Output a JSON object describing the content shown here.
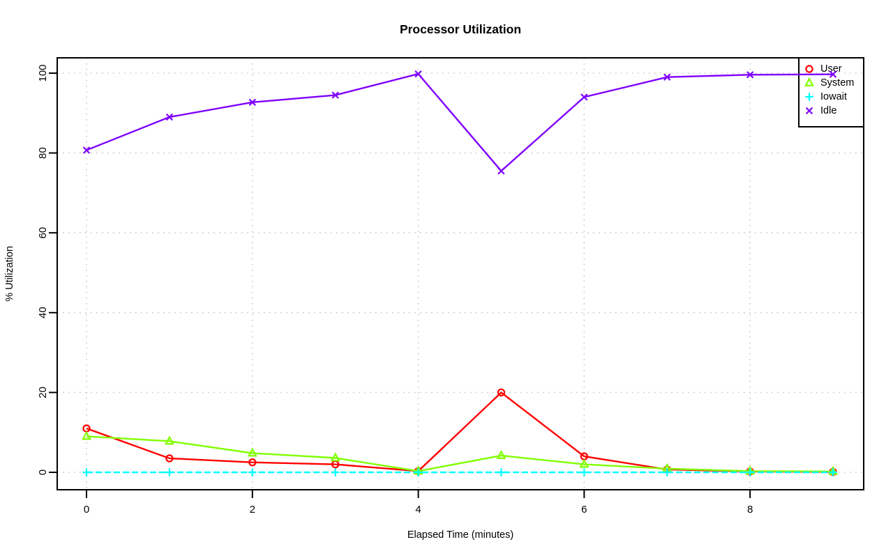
{
  "chart_data": {
    "type": "line",
    "title": "Processor Utilization",
    "xlabel": "Elapsed Time (minutes)",
    "ylabel": "% Utilization",
    "x": [
      0,
      1,
      2,
      3,
      4,
      5,
      6,
      7,
      8,
      9
    ],
    "xticks": [
      0,
      2,
      4,
      6,
      8
    ],
    "yticks": [
      0,
      20,
      40,
      60,
      80,
      100
    ],
    "xlim": [
      0,
      9
    ],
    "ylim": [
      0,
      100
    ],
    "grid": "dotted gray at ticks, both axes",
    "grid_color": "#c8c8c8",
    "axis_color": "#000000",
    "background_color": "#ffffff",
    "legend_position": "top-right",
    "legend_entries": [
      "User",
      "System",
      "Iowait",
      "Idle"
    ],
    "series": [
      {
        "name": "User",
        "color": "#ff0000",
        "marker": "circle",
        "line_style": "solid",
        "values": [
          11,
          3.5,
          2.5,
          2,
          0.3,
          20,
          4,
          0.7,
          0.2,
          0.1
        ]
      },
      {
        "name": "System",
        "color": "#80ff00",
        "marker": "triangle",
        "line_style": "solid",
        "values": [
          9,
          7.8,
          4.8,
          3.6,
          0.3,
          4.2,
          2,
          0.9,
          0.3,
          0.2
        ]
      },
      {
        "name": "Iowait",
        "color": "#00ffff",
        "marker": "plus",
        "line_style": "dashed",
        "values": [
          0,
          0,
          0,
          0,
          0,
          0,
          0,
          0,
          0,
          0
        ]
      },
      {
        "name": "Idle",
        "color": "#7f00ff",
        "marker": "x",
        "line_style": "solid",
        "values": [
          80.7,
          89,
          92.7,
          94.5,
          99.8,
          75.5,
          94,
          99,
          99.6,
          99.7
        ]
      }
    ]
  }
}
